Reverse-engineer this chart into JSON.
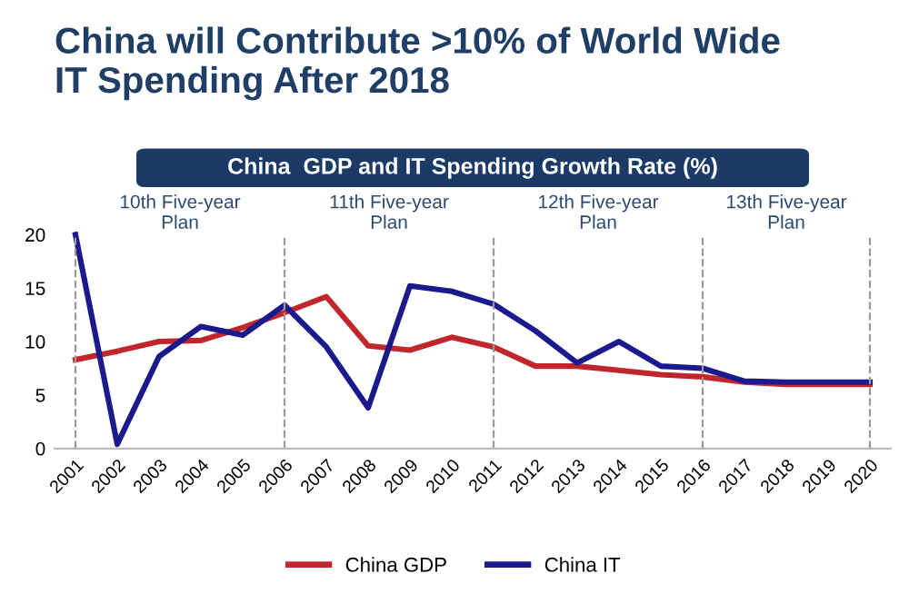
{
  "chart_data": {
    "type": "line",
    "title": "China will Contribute >10% of World Wide\nIT Spending After 2018",
    "subtitle": "China  GDP and IT Spending Growth Rate (%)",
    "categories": [
      "2001",
      "2002",
      "2003",
      "2004",
      "2005",
      "2006",
      "2007",
      "2008",
      "2009",
      "2010",
      "2011",
      "2012",
      "2013",
      "2014",
      "2015",
      "2016",
      "2017",
      "2018",
      "2019",
      "2020"
    ],
    "series": [
      {
        "name": "China GDP",
        "color": "#c0262c",
        "values": [
          8.3,
          9.1,
          10.0,
          10.1,
          11.3,
          12.7,
          14.2,
          9.6,
          9.2,
          10.4,
          9.5,
          7.7,
          7.7,
          7.3,
          6.9,
          6.7,
          6.2,
          6.0,
          6.0,
          6.0
        ]
      },
      {
        "name": "China IT",
        "color": "#1a1a8c",
        "values": [
          20,
          0.4,
          8.6,
          11.4,
          10.6,
          13.4,
          9.5,
          3.8,
          15.2,
          14.7,
          13.5,
          11.0,
          8.0,
          10.0,
          7.7,
          7.5,
          6.3,
          6.2,
          6.2,
          6.2
        ]
      }
    ],
    "ylim": [
      0,
      20
    ],
    "yticks": [
      0,
      5,
      10,
      15,
      20
    ],
    "grid": false,
    "legend": "bottom",
    "marker": "none",
    "line_style": "solid",
    "ref_lines": [
      {
        "axis": "x",
        "value": "2001",
        "color": "#999999",
        "line_style": "dashed"
      },
      {
        "axis": "x",
        "value": "2006",
        "color": "#999999",
        "line_style": "dashed"
      },
      {
        "axis": "x",
        "value": "2011",
        "color": "#999999",
        "line_style": "dashed"
      },
      {
        "axis": "x",
        "value": "2016",
        "color": "#999999",
        "line_style": "dashed"
      },
      {
        "axis": "x",
        "value": "2020",
        "color": "#999999",
        "line_style": "dashed"
      }
    ],
    "annotations": [
      "10th Five-year\nPlan",
      "11th Five-year\nPlan",
      "12th Five-year\nPlan",
      "13th Five-year\nPlan"
    ]
  }
}
